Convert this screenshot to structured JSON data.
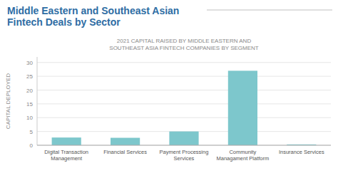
{
  "chart_data": {
    "type": "bar",
    "title": "Middle Eastern and Southeast Asian\nFintech Deals by Sector",
    "subtitle": "2021 CAPITAL RAISED BY MIDDLE EASTERN AND\nSOUTHEAST ASIA FINTECH COMPANIES BY SEGMENT",
    "categories": [
      "Digital Transaction\nManagement",
      "Financial Services",
      "Payment Processing\nServices",
      "Community\nManagament Platform",
      "Insurance Services"
    ],
    "values": [
      2.8,
      2.7,
      5.0,
      27.0,
      0.3
    ],
    "color": "#7dc7cc",
    "ylabel": "CAPITAL DEPLOYED",
    "ylim": [
      0,
      32
    ],
    "yticks": [
      0,
      5,
      10,
      15,
      20,
      25,
      30
    ],
    "grid": true
  }
}
